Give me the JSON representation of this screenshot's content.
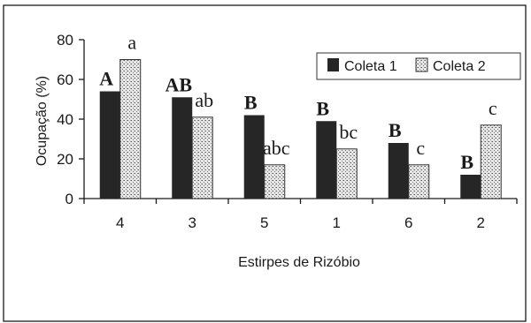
{
  "chart_data": {
    "type": "bar",
    "ylabel": "Ocupação (%)",
    "xlabel": "Estirpes de Rizóbio",
    "ylim": [
      0,
      80
    ],
    "yticks": [
      0,
      20,
      40,
      60,
      80
    ],
    "categories": [
      "4",
      "3",
      "5",
      "1",
      "6",
      "2"
    ],
    "series": [
      {
        "name": "Coleta 1",
        "color": "#262626",
        "values": [
          54,
          51,
          42,
          39,
          28,
          12
        ],
        "labels": [
          "A",
          "AB",
          "B",
          "B",
          "B",
          "B"
        ]
      },
      {
        "name": "Coleta 2",
        "color": "dotted-light-gray",
        "values": [
          70,
          41,
          17,
          25,
          17,
          37
        ],
        "labels": [
          "a",
          "ab",
          "abc",
          "bc",
          "c",
          "c"
        ]
      }
    ],
    "legend": "top-right",
    "grid": false
  }
}
